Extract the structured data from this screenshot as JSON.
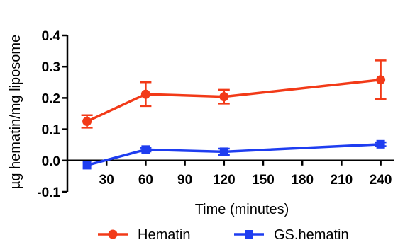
{
  "chart_data": {
    "type": "line",
    "xlabel": "Time (minutes)",
    "ylabel": "µg hematin/mg liposome",
    "xlim": [
      0,
      250
    ],
    "ylim": [
      -0.1,
      0.4
    ],
    "x_ticks": [
      30,
      60,
      90,
      120,
      150,
      180,
      210,
      240
    ],
    "x_tick_labels": [
      "30",
      "60",
      "90",
      "120",
      "150",
      "180",
      "210",
      "240"
    ],
    "y_ticks": [
      -0.1,
      0.0,
      0.1,
      0.2,
      0.3,
      0.4
    ],
    "y_tick_labels": [
      "-0.1",
      "0.0",
      "0.1",
      "0.2",
      "0.3",
      "0.4"
    ],
    "grid": false,
    "legend_position": "bottom",
    "series": [
      {
        "name": "Hematin",
        "color": "#f23a18",
        "marker": "circle",
        "x": [
          15,
          60,
          120,
          240
        ],
        "y": [
          0.125,
          0.212,
          0.204,
          0.258
        ],
        "err": [
          0.02,
          0.038,
          0.022,
          0.062
        ]
      },
      {
        "name": "GS.hematin",
        "color": "#1e3df0",
        "marker": "square",
        "x": [
          15,
          60,
          120,
          240
        ],
        "y": [
          -0.015,
          0.035,
          0.028,
          0.052
        ],
        "err": [
          0.0,
          0.006,
          0.01,
          0.006
        ]
      }
    ]
  }
}
